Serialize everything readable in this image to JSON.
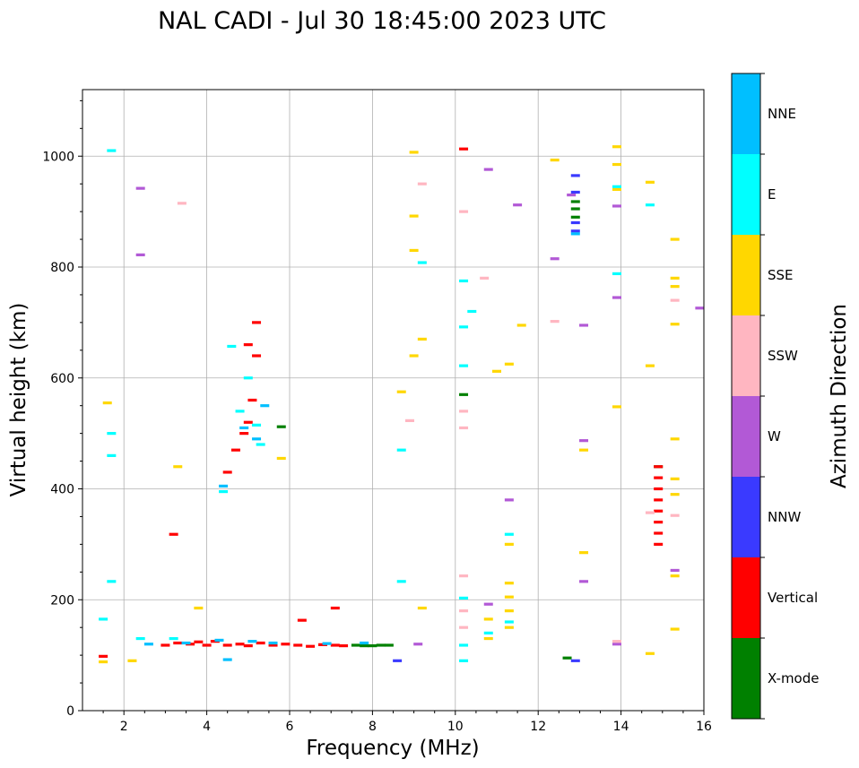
{
  "chart_data": {
    "type": "scatter",
    "title": "NAL CADI - Jul 30 18:45:00 2023 UTC",
    "xlabel": "Frequency (MHz)",
    "ylabel": "Virtual height (km)",
    "xlim": [
      1,
      16
    ],
    "ylim": [
      0,
      1120
    ],
    "xticks": [
      2,
      4,
      6,
      8,
      10,
      12,
      14,
      16
    ],
    "yticks": [
      0,
      200,
      400,
      600,
      800,
      1000
    ],
    "grid": true,
    "colorbar": {
      "label": "Azimuth Direction",
      "categories": [
        "X-mode",
        "Vertical",
        "NNW",
        "W",
        "SSW",
        "SSE",
        "E",
        "NNE"
      ],
      "colors": [
        "#008000",
        "#ff0000",
        "#3a3aff",
        "#b259d6",
        "#ffb6c1",
        "#ffd700",
        "#00ffff",
        "#00bfff"
      ]
    },
    "series": [
      {
        "name": "X-mode",
        "points": [
          [
            7.6,
            118
          ],
          [
            7.8,
            117
          ],
          [
            8.0,
            117
          ],
          [
            8.2,
            118
          ],
          [
            8.4,
            118
          ],
          [
            10.2,
            570
          ],
          [
            12.7,
            95
          ],
          [
            12.9,
            918
          ],
          [
            12.9,
            905
          ],
          [
            12.9,
            890
          ],
          [
            5.8,
            512
          ],
          [
            14.9,
            440
          ]
        ]
      },
      {
        "name": "Vertical",
        "points": [
          [
            1.5,
            98
          ],
          [
            3.0,
            118
          ],
          [
            3.3,
            122
          ],
          [
            3.6,
            120
          ],
          [
            3.8,
            124
          ],
          [
            4.0,
            118
          ],
          [
            4.2,
            125
          ],
          [
            4.5,
            118
          ],
          [
            4.8,
            120
          ],
          [
            5.0,
            117
          ],
          [
            5.3,
            122
          ],
          [
            5.6,
            118
          ],
          [
            5.9,
            120
          ],
          [
            6.2,
            118
          ],
          [
            6.5,
            116
          ],
          [
            6.8,
            119
          ],
          [
            7.1,
            118
          ],
          [
            7.3,
            117
          ],
          [
            6.3,
            163
          ],
          [
            7.1,
            185
          ],
          [
            3.2,
            318
          ],
          [
            4.5,
            430
          ],
          [
            4.7,
            470
          ],
          [
            4.9,
            500
          ],
          [
            5.0,
            520
          ],
          [
            5.1,
            560
          ],
          [
            5.2,
            640
          ],
          [
            5.2,
            700
          ],
          [
            5.0,
            660
          ],
          [
            10.2,
            1013
          ],
          [
            14.9,
            440
          ],
          [
            14.9,
            420
          ],
          [
            14.9,
            400
          ],
          [
            14.9,
            380
          ],
          [
            14.9,
            360
          ],
          [
            14.9,
            340
          ],
          [
            14.9,
            320
          ],
          [
            14.9,
            300
          ]
        ]
      },
      {
        "name": "NNW",
        "points": [
          [
            8.6,
            90
          ],
          [
            12.9,
            90
          ],
          [
            12.9,
            965
          ],
          [
            12.9,
            935
          ],
          [
            12.9,
            880
          ],
          [
            12.9,
            865
          ]
        ]
      },
      {
        "name": "W",
        "points": [
          [
            2.4,
            942
          ],
          [
            2.4,
            822
          ],
          [
            9.1,
            120
          ],
          [
            10.8,
            976
          ],
          [
            10.8,
            192
          ],
          [
            11.3,
            380
          ],
          [
            11.5,
            912
          ],
          [
            12.4,
            815
          ],
          [
            12.8,
            930
          ],
          [
            13.1,
            695
          ],
          [
            13.1,
            487
          ],
          [
            13.1,
            233
          ],
          [
            13.9,
            910
          ],
          [
            13.9,
            745
          ],
          [
            13.9,
            120
          ],
          [
            15.3,
            253
          ],
          [
            15.9,
            726
          ]
        ]
      },
      {
        "name": "SSW",
        "points": [
          [
            3.4,
            915
          ],
          [
            10.2,
            900
          ],
          [
            10.2,
            540
          ],
          [
            10.2,
            510
          ],
          [
            10.2,
            243
          ],
          [
            10.2,
            180
          ],
          [
            10.2,
            150
          ],
          [
            10.7,
            780
          ],
          [
            8.9,
            523
          ],
          [
            9.2,
            950
          ],
          [
            12.4,
            702
          ],
          [
            13.9,
            125
          ],
          [
            14.7,
            357
          ],
          [
            15.3,
            740
          ],
          [
            15.3,
            352
          ]
        ]
      },
      {
        "name": "SSE",
        "points": [
          [
            1.6,
            555
          ],
          [
            1.5,
            88
          ],
          [
            2.2,
            90
          ],
          [
            3.8,
            185
          ],
          [
            3.3,
            440
          ],
          [
            5.8,
            455
          ],
          [
            8.7,
            575
          ],
          [
            9.0,
            1007
          ],
          [
            9.0,
            892
          ],
          [
            9.0,
            830
          ],
          [
            9.0,
            640
          ],
          [
            9.2,
            670
          ],
          [
            9.2,
            185
          ],
          [
            10.8,
            165
          ],
          [
            10.8,
            130
          ],
          [
            11.0,
            612
          ],
          [
            11.3,
            625
          ],
          [
            11.3,
            300
          ],
          [
            11.3,
            230
          ],
          [
            11.3,
            205
          ],
          [
            11.3,
            180
          ],
          [
            11.3,
            150
          ],
          [
            11.6,
            695
          ],
          [
            12.4,
            993
          ],
          [
            13.1,
            470
          ],
          [
            13.1,
            285
          ],
          [
            13.9,
            1017
          ],
          [
            13.9,
            985
          ],
          [
            13.9,
            940
          ],
          [
            13.9,
            548
          ],
          [
            14.7,
            953
          ],
          [
            14.7,
            622
          ],
          [
            14.7,
            103
          ],
          [
            15.3,
            850
          ],
          [
            15.3,
            780
          ],
          [
            15.3,
            765
          ],
          [
            15.3,
            697
          ],
          [
            15.3,
            490
          ],
          [
            15.3,
            418
          ],
          [
            15.3,
            390
          ],
          [
            15.3,
            243
          ],
          [
            15.3,
            147
          ]
        ]
      },
      {
        "name": "E",
        "points": [
          [
            1.7,
            1010
          ],
          [
            1.5,
            165
          ],
          [
            1.7,
            500
          ],
          [
            1.7,
            460
          ],
          [
            1.7,
            233
          ],
          [
            2.4,
            130
          ],
          [
            3.2,
            130
          ],
          [
            4.4,
            395
          ],
          [
            4.6,
            657
          ],
          [
            4.8,
            540
          ],
          [
            5.0,
            600
          ],
          [
            5.2,
            515
          ],
          [
            5.3,
            480
          ],
          [
            8.7,
            470
          ],
          [
            8.7,
            233
          ],
          [
            9.2,
            808
          ],
          [
            10.2,
            775
          ],
          [
            10.2,
            692
          ],
          [
            10.2,
            622
          ],
          [
            10.2,
            203
          ],
          [
            10.2,
            118
          ],
          [
            10.2,
            90
          ],
          [
            10.4,
            720
          ],
          [
            10.8,
            140
          ],
          [
            11.3,
            318
          ],
          [
            11.3,
            160
          ],
          [
            13.9,
            788
          ],
          [
            13.9,
            945
          ],
          [
            14.7,
            912
          ]
        ]
      },
      {
        "name": "NNE",
        "points": [
          [
            2.6,
            120
          ],
          [
            3.5,
            122
          ],
          [
            4.3,
            127
          ],
          [
            4.5,
            92
          ],
          [
            5.1,
            125
          ],
          [
            5.6,
            122
          ],
          [
            4.4,
            405
          ],
          [
            4.9,
            510
          ],
          [
            5.2,
            490
          ],
          [
            5.4,
            550
          ],
          [
            12.9,
            860
          ],
          [
            6.9,
            121
          ],
          [
            7.8,
            122
          ]
        ]
      }
    ]
  }
}
